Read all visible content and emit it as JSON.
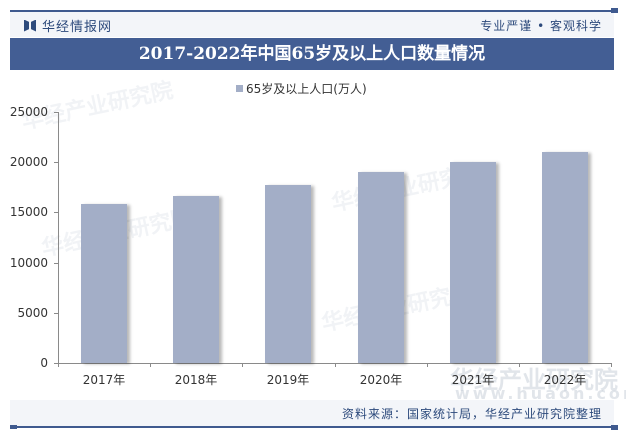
{
  "header": {
    "brand": "华经情报网",
    "slogan": "专业严谨 • 客观科学",
    "title": "2017-2022年中国65岁及以上人口数量情况"
  },
  "legend": {
    "label": "65岁及以上人口(万人)"
  },
  "footer": {
    "source": "资料来源：国家统计局，华经产业研究院整理"
  },
  "watermarks": [
    "华经产业研究院",
    "www.huaon.com"
  ],
  "colors": {
    "bar": "#a3aec7",
    "title_band": "#435e94",
    "brand": "#2d4a7c"
  },
  "chart_data": {
    "type": "bar",
    "title": "2017-2022年中国65岁及以上人口数量情况",
    "categories": [
      "2017年",
      "2018年",
      "2019年",
      "2020年",
      "2021年",
      "2022年"
    ],
    "series": [
      {
        "name": "65岁及以上人口(万人)",
        "values": [
          15831,
          16658,
          17767,
          19064,
          20056,
          20978
        ]
      }
    ],
    "xlabel": "",
    "ylabel": "",
    "ylim": [
      0,
      25000
    ],
    "yticks": [
      "0",
      "5000",
      "10000",
      "15000",
      "20000",
      "25000"
    ],
    "grid": false,
    "legend_position": "top"
  }
}
